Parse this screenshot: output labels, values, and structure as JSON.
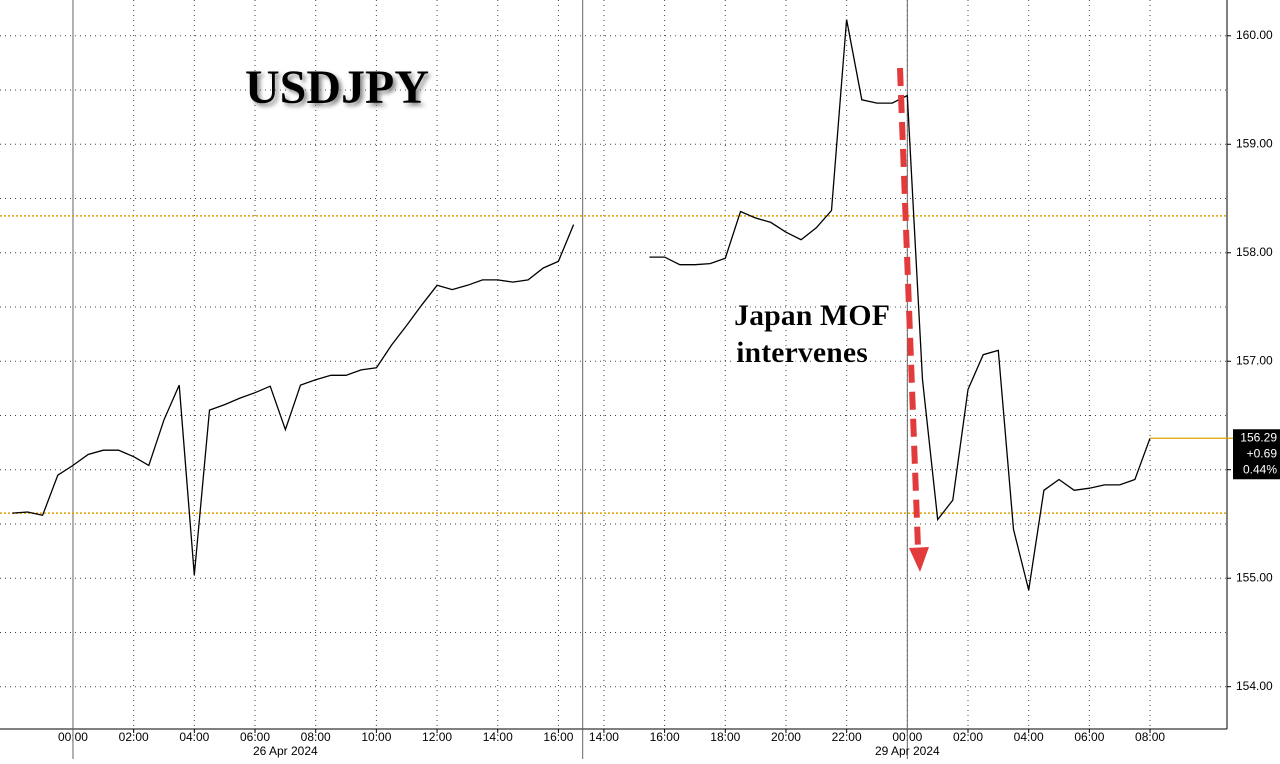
{
  "chart_data": {
    "type": "line",
    "title": "USDJPY",
    "annotation": [
      "Japan MOF",
      "intervenes"
    ],
    "categories": [
      null,
      null,
      null,
      null,
      "00:00",
      null,
      null,
      null,
      "02:00",
      null,
      null,
      null,
      "04:00",
      null,
      null,
      null,
      "06:00",
      null,
      null,
      null,
      "08:00",
      null,
      null,
      null,
      "10:00",
      null,
      null,
      null,
      "12:00",
      null,
      null,
      null,
      "14:00",
      null,
      null,
      null,
      "16:00",
      null,
      null,
      "14:00",
      null,
      null,
      null,
      "16:00",
      null,
      null,
      null,
      "18:00",
      null,
      null,
      null,
      "20:00",
      null,
      null,
      null,
      "22:00",
      null,
      null,
      null,
      "00:00",
      null,
      null,
      null,
      "02:00",
      null,
      null,
      null,
      "04:00",
      null,
      null,
      null,
      "06:00",
      null,
      null,
      null,
      "08:00",
      null,
      null,
      null,
      null
    ],
    "date_labels": [
      "26 Apr 2024",
      "29 Apr 2024"
    ],
    "values": [
      155.6,
      155.61,
      155.58,
      155.95,
      156.04,
      156.14,
      156.18,
      156.18,
      156.12,
      156.04,
      156.46,
      156.78,
      155.03,
      156.55,
      156.6,
      156.66,
      156.71,
      156.77,
      156.37,
      156.78,
      156.83,
      156.87,
      156.87,
      156.92,
      156.94,
      157.15,
      157.33,
      157.52,
      157.7,
      157.66,
      157.7,
      157.75,
      157.75,
      157.73,
      157.75,
      157.86,
      157.92,
      158.26,
      null,
      null,
      null,
      null,
      157.96,
      157.96,
      157.89,
      157.89,
      157.9,
      157.95,
      158.38,
      158.32,
      158.28,
      158.19,
      158.12,
      158.23,
      158.39,
      160.15,
      159.41,
      159.38,
      159.38,
      159.45,
      156.83,
      155.54,
      155.72,
      156.74,
      157.06,
      157.1,
      155.45,
      154.89,
      155.81,
      155.91,
      155.81,
      155.83,
      155.86,
      155.86,
      155.91,
      156.29,
      null,
      null,
      null,
      null
    ],
    "color": "#000000",
    "ylim": [
      153.61,
      160.33
    ],
    "yticks": [
      {
        "value": 154,
        "label": "154.00"
      },
      {
        "value": 155,
        "label": "155.00"
      },
      {
        "value": 156,
        "label": "156.00"
      },
      {
        "value": 157,
        "label": "157.00"
      },
      {
        "value": 158,
        "label": "158.00"
      },
      {
        "value": 159,
        "label": "159.00"
      },
      {
        "value": 160,
        "label": "160.00"
      }
    ],
    "reference_lines": [
      158.34,
      155.6
    ],
    "reference_color": "#e0a000",
    "last_price": {
      "value": 156.29,
      "change": "+0.69",
      "change_pct": "0.44%"
    },
    "grid": true
  }
}
